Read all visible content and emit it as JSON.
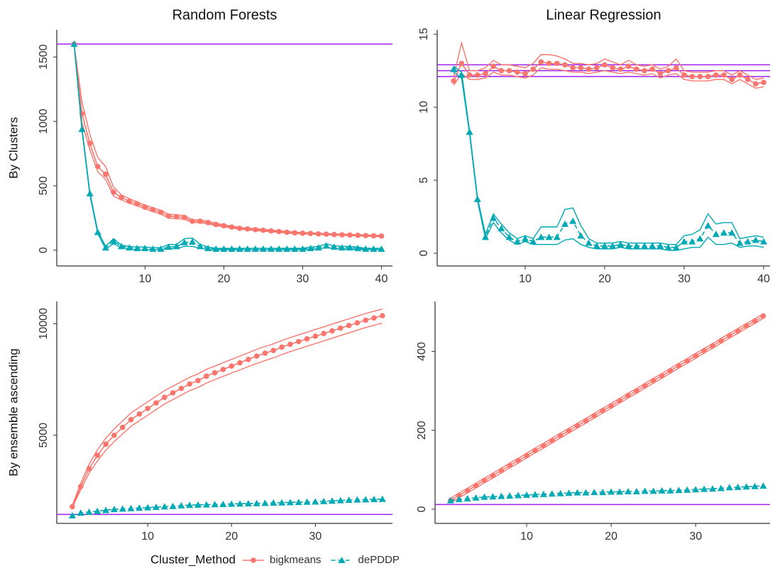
{
  "legend": {
    "title": "Cluster_Method"
  },
  "chart_data": [
    {
      "type": "line",
      "title": "Random Forests",
      "ylabel": "By Clusters",
      "x": [
        1,
        2,
        3,
        4,
        5,
        6,
        7,
        8,
        9,
        10,
        11,
        12,
        13,
        14,
        15,
        16,
        17,
        18,
        19,
        20,
        21,
        22,
        23,
        24,
        25,
        26,
        27,
        28,
        29,
        30,
        31,
        32,
        33,
        34,
        35,
        36,
        37,
        38,
        39,
        40
      ],
      "xlim": [
        -1.2,
        41.4
      ],
      "xticks": [
        10,
        20,
        30,
        40
      ],
      "ylim": [
        -122,
        1711
      ],
      "yticks": [
        0,
        500,
        1000,
        1500
      ],
      "hline": [
        1600
      ],
      "hline_color": "#a020f0",
      "series": [
        {
          "name": "bigkmeans",
          "color": "#f8766d",
          "marker": "circle",
          "dash": false,
          "values": [
            1600,
            1060,
            830,
            650,
            590,
            450,
            410,
            380,
            360,
            335,
            315,
            295,
            265,
            260,
            255,
            225,
            225,
            215,
            200,
            190,
            180,
            170,
            165,
            160,
            155,
            150,
            145,
            140,
            135,
            132,
            130,
            127,
            125,
            122,
            120,
            118,
            116,
            114,
            112,
            110
          ],
          "lower": [
            1600,
            990,
            780,
            610,
            550,
            420,
            390,
            365,
            345,
            320,
            300,
            280,
            250,
            245,
            240,
            215,
            213,
            205,
            190,
            182,
            172,
            163,
            158,
            153,
            148,
            143,
            139,
            134,
            129,
            127,
            125,
            122,
            120,
            117,
            115,
            113,
            111,
            109,
            107,
            105
          ],
          "upper": [
            1600,
            1150,
            900,
            720,
            650,
            490,
            430,
            400,
            375,
            350,
            330,
            310,
            280,
            275,
            270,
            235,
            237,
            225,
            210,
            198,
            188,
            177,
            172,
            167,
            162,
            157,
            151,
            146,
            141,
            137,
            135,
            132,
            130,
            127,
            125,
            123,
            121,
            119,
            117,
            115
          ]
        },
        {
          "name": "dePDDP",
          "color": "#00a9b4",
          "marker": "triangle",
          "dash": true,
          "values": [
            1600,
            940,
            440,
            140,
            20,
            70,
            30,
            20,
            15,
            15,
            10,
            10,
            25,
            30,
            60,
            65,
            30,
            15,
            10,
            10,
            10,
            10,
            10,
            10,
            10,
            10,
            10,
            10,
            10,
            10,
            15,
            20,
            35,
            25,
            20,
            20,
            15,
            10,
            10,
            10
          ],
          "lower": [
            1600,
            930,
            430,
            130,
            10,
            50,
            20,
            10,
            5,
            5,
            5,
            5,
            10,
            15,
            30,
            30,
            15,
            5,
            5,
            5,
            5,
            5,
            5,
            5,
            5,
            5,
            5,
            5,
            5,
            5,
            5,
            10,
            20,
            15,
            10,
            10,
            5,
            5,
            5,
            5
          ],
          "upper": [
            1600,
            950,
            450,
            150,
            30,
            90,
            40,
            30,
            25,
            25,
            20,
            20,
            45,
            45,
            90,
            95,
            45,
            25,
            15,
            15,
            15,
            15,
            15,
            15,
            15,
            15,
            15,
            15,
            15,
            15,
            25,
            30,
            50,
            35,
            30,
            30,
            25,
            15,
            15,
            15
          ]
        }
      ]
    },
    {
      "type": "line",
      "title": "Linear Regression",
      "x": [
        1,
        2,
        3,
        4,
        5,
        6,
        7,
        8,
        9,
        10,
        11,
        12,
        13,
        14,
        15,
        16,
        17,
        18,
        19,
        20,
        21,
        22,
        23,
        24,
        25,
        26,
        27,
        28,
        29,
        30,
        31,
        32,
        33,
        34,
        35,
        36,
        37,
        38,
        39,
        40
      ],
      "xlim": [
        -1.07,
        40.8
      ],
      "xticks": [
        10,
        20,
        30,
        40
      ],
      "ylim": [
        -0.87,
        15.3
      ],
      "yticks": [
        0,
        5,
        10,
        15
      ],
      "hline": [
        12.5,
        12.1,
        12.9
      ],
      "hline_color": "#a020f0",
      "series": [
        {
          "name": "bigkmeans",
          "color": "#f8766d",
          "marker": "circle",
          "dash": false,
          "values": [
            11.8,
            13.0,
            12.2,
            12.2,
            12.3,
            12.8,
            12.5,
            12.5,
            12.4,
            12.3,
            12.6,
            13.1,
            13.0,
            13.0,
            12.9,
            12.7,
            12.7,
            12.6,
            12.7,
            12.9,
            12.7,
            12.6,
            12.8,
            12.6,
            12.5,
            12.6,
            12.3,
            12.5,
            12.7,
            12.2,
            12.1,
            12.1,
            12.1,
            12.2,
            12.2,
            11.9,
            12.2,
            11.9,
            11.6,
            11.7
          ],
          "lower": [
            11.5,
            12.3,
            11.9,
            11.9,
            12.0,
            12.4,
            12.2,
            12.2,
            12.1,
            12.0,
            12.2,
            12.7,
            12.6,
            12.6,
            12.5,
            12.4,
            12.4,
            12.3,
            12.4,
            12.5,
            12.4,
            12.3,
            12.4,
            12.3,
            12.2,
            12.3,
            12.0,
            12.2,
            12.3,
            11.9,
            11.8,
            11.8,
            11.8,
            11.9,
            11.9,
            11.6,
            11.9,
            11.6,
            11.3,
            11.4
          ],
          "upper": [
            12.1,
            14.4,
            12.5,
            12.5,
            12.7,
            13.2,
            12.9,
            12.9,
            12.8,
            12.7,
            13.0,
            13.6,
            13.6,
            13.5,
            13.3,
            13.0,
            13.0,
            12.9,
            13.0,
            13.3,
            13.1,
            12.9,
            13.2,
            12.9,
            12.8,
            12.9,
            12.6,
            12.8,
            13.3,
            12.5,
            12.4,
            12.4,
            12.4,
            12.5,
            12.5,
            12.2,
            12.5,
            12.2,
            11.9,
            12.0
          ]
        },
        {
          "name": "dePDDP",
          "color": "#00a9b4",
          "marker": "triangle",
          "dash": true,
          "values": [
            12.6,
            12.2,
            8.3,
            3.7,
            1.1,
            2.4,
            1.7,
            1.1,
            0.8,
            1.0,
            0.8,
            1.1,
            1.1,
            1.1,
            2.0,
            2.2,
            1.2,
            0.7,
            0.5,
            0.5,
            0.5,
            0.6,
            0.5,
            0.5,
            0.5,
            0.5,
            0.5,
            0.4,
            0.4,
            0.8,
            0.8,
            1.0,
            1.9,
            1.3,
            1.4,
            1.4,
            0.7,
            0.8,
            0.9,
            0.8
          ],
          "lower": [
            12.4,
            12.0,
            8.2,
            3.6,
            1.0,
            2.1,
            1.4,
            0.9,
            0.6,
            0.8,
            0.6,
            0.6,
            0.6,
            0.6,
            0.9,
            1.0,
            0.6,
            0.4,
            0.3,
            0.3,
            0.3,
            0.4,
            0.3,
            0.3,
            0.3,
            0.3,
            0.3,
            0.2,
            0.2,
            0.3,
            0.4,
            0.4,
            1.1,
            0.6,
            0.6,
            0.7,
            0.4,
            0.5,
            0.5,
            0.4
          ],
          "upper": [
            12.8,
            12.4,
            8.4,
            3.8,
            1.3,
            2.7,
            2.0,
            1.4,
            1.0,
            1.2,
            1.0,
            1.8,
            1.8,
            1.8,
            3.0,
            3.1,
            1.9,
            1.0,
            0.7,
            0.7,
            0.7,
            0.8,
            0.7,
            0.7,
            0.7,
            0.7,
            0.7,
            0.6,
            0.6,
            1.2,
            1.3,
            1.6,
            2.7,
            2.0,
            2.1,
            2.1,
            1.0,
            1.1,
            1.2,
            1.1
          ]
        }
      ]
    },
    {
      "type": "line",
      "ylabel": "By ensemble ascending",
      "x": [
        1,
        2,
        3,
        4,
        5,
        6,
        7,
        8,
        9,
        10,
        11,
        12,
        13,
        14,
        15,
        16,
        17,
        18,
        19,
        20,
        21,
        22,
        23,
        24,
        25,
        26,
        27,
        28,
        29,
        30,
        31,
        32,
        33,
        34,
        35,
        36,
        37,
        38
      ],
      "xlim": [
        -0.85,
        39.2
      ],
      "xticks": [
        10,
        20,
        30
      ],
      "ylim": [
        1050,
        11000
      ],
      "yticks": [
        5000,
        10000
      ],
      "hline": [
        1450
      ],
      "hline_color": "#a020f0",
      "series": [
        {
          "name": "bigkmeans",
          "color": "#f8766d",
          "marker": "circle",
          "dash": false,
          "values": [
            1800,
            2700,
            3500,
            4100,
            4600,
            5000,
            5350,
            5700,
            5950,
            6200,
            6450,
            6700,
            6900,
            7100,
            7300,
            7450,
            7650,
            7800,
            7950,
            8100,
            8250,
            8400,
            8550,
            8680,
            8800,
            8950,
            9080,
            9200,
            9320,
            9440,
            9560,
            9680,
            9800,
            9920,
            10040,
            10160,
            10260,
            10360
          ],
          "lower": [
            1750,
            2550,
            3300,
            3850,
            4330,
            4720,
            5060,
            5400,
            5650,
            5900,
            6150,
            6400,
            6600,
            6800,
            7000,
            7140,
            7340,
            7490,
            7640,
            7790,
            7930,
            8080,
            8220,
            8350,
            8470,
            8620,
            8750,
            8870,
            8990,
            9110,
            9230,
            9350,
            9470,
            9590,
            9710,
            9830,
            9930,
            10030
          ],
          "upper": [
            1850,
            2850,
            3700,
            4350,
            4870,
            5280,
            5640,
            6000,
            6250,
            6500,
            6750,
            7000,
            7200,
            7400,
            7600,
            7750,
            7950,
            8100,
            8250,
            8400,
            8550,
            8700,
            8850,
            8980,
            9100,
            9250,
            9380,
            9500,
            9620,
            9740,
            9860,
            9980,
            10100,
            10220,
            10340,
            10460,
            10560,
            10660
          ]
        },
        {
          "name": "dePDDP",
          "color": "#00a9b4",
          "marker": "triangle",
          "dash": true,
          "values": [
            1400,
            1520,
            1560,
            1600,
            1640,
            1680,
            1700,
            1720,
            1740,
            1760,
            1780,
            1800,
            1820,
            1850,
            1870,
            1880,
            1890,
            1900,
            1910,
            1920,
            1930,
            1940,
            1950,
            1960,
            1970,
            1980,
            1990,
            2000,
            2010,
            2020,
            2040,
            2060,
            2080,
            2100,
            2110,
            2120,
            2130,
            2140
          ]
        }
      ]
    },
    {
      "type": "line",
      "x": [
        1,
        2,
        3,
        4,
        5,
        6,
        7,
        8,
        9,
        10,
        11,
        12,
        13,
        14,
        15,
        16,
        17,
        18,
        19,
        20,
        21,
        22,
        23,
        24,
        25,
        26,
        27,
        28,
        29,
        30,
        31,
        32,
        33,
        34,
        35,
        36,
        37,
        38
      ],
      "xlim": [
        -0.84,
        38.8
      ],
      "xticks": [
        10,
        20,
        30
      ],
      "ylim": [
        -36,
        527
      ],
      "yticks": [
        0,
        200,
        400
      ],
      "hline": [
        12
      ],
      "hline_color": "#a020f0",
      "series": [
        {
          "name": "bigkmeans",
          "color": "#f8766d",
          "marker": "circle",
          "dash": false,
          "values": [
            22,
            35,
            47,
            60,
            73,
            85,
            98,
            111,
            123,
            136,
            149,
            161,
            174,
            187,
            199,
            212,
            224,
            237,
            250,
            262,
            275,
            288,
            300,
            313,
            326,
            338,
            351,
            364,
            376,
            389,
            402,
            414,
            427,
            440,
            452,
            465,
            477,
            490
          ],
          "lower": [
            16,
            29,
            41,
            54,
            67,
            79,
            92,
            105,
            117,
            130,
            143,
            155,
            168,
            181,
            193,
            206,
            218,
            231,
            244,
            256,
            269,
            282,
            294,
            307,
            320,
            332,
            345,
            358,
            370,
            383,
            396,
            408,
            421,
            434,
            446,
            459,
            471,
            484
          ],
          "upper": [
            28,
            41,
            53,
            66,
            79,
            91,
            104,
            117,
            129,
            142,
            155,
            167,
            180,
            193,
            205,
            218,
            230,
            243,
            256,
            268,
            281,
            294,
            306,
            319,
            332,
            344,
            357,
            370,
            382,
            395,
            408,
            420,
            433,
            446,
            458,
            471,
            483,
            496
          ]
        },
        {
          "name": "dePDDP",
          "color": "#00a9b4",
          "marker": "triangle",
          "dash": true,
          "values": [
            22,
            25,
            27,
            29,
            31,
            32,
            33,
            34,
            35,
            36,
            37,
            38,
            39,
            40,
            41,
            42,
            42,
            43,
            43,
            44,
            44,
            45,
            45,
            46,
            46,
            47,
            47,
            48,
            49,
            50,
            51,
            52,
            53,
            55,
            56,
            57,
            58,
            59
          ]
        }
      ]
    }
  ]
}
